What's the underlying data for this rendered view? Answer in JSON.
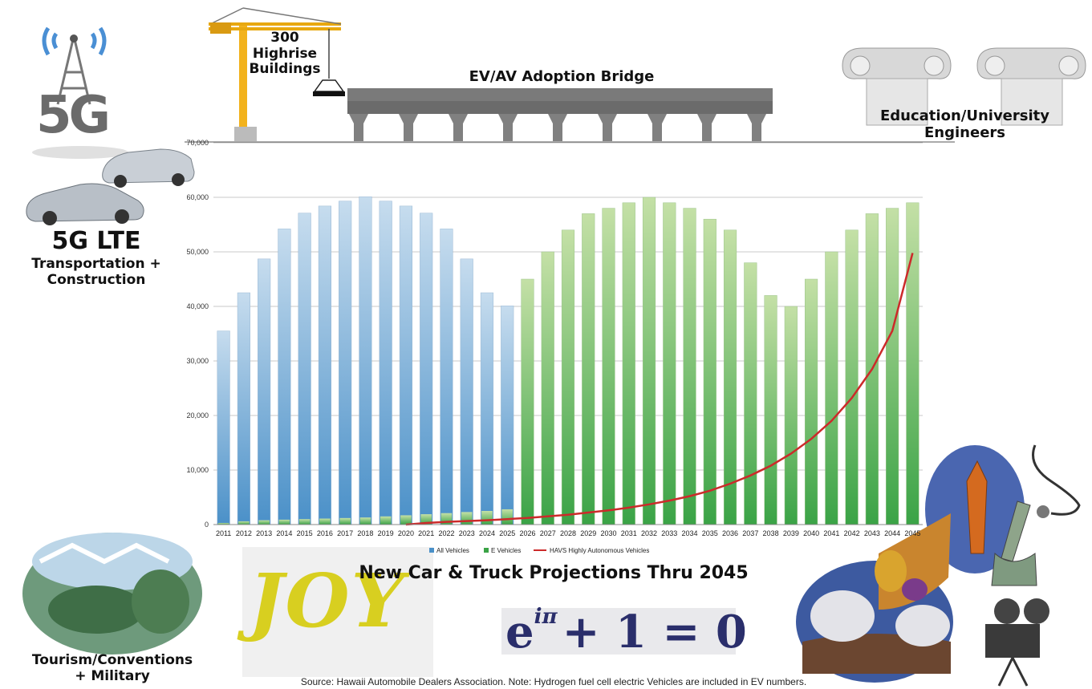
{
  "labels": {
    "highrise": "300\nHighrise\nBuildings",
    "bridge": "EV/AV Adoption Bridge",
    "education": "Education/University\nEngineers",
    "fiveg_title": "5G LTE",
    "fiveg_sub": "Transportation +\nConstruction",
    "tourism": "Tourism/Conventions\n+ Military",
    "chart_title": "New Car & Truck Projections Thru 2045",
    "euler_base": "e",
    "euler_exp": "iπ",
    "euler_rest": "+ 1 = 0",
    "fiveg_icon_text": "5G",
    "joy_text": "JOY",
    "source": "Source: Hawaii Automobile Dealers Association. Note: Hydrogen fuel cell electric Vehicles are included in EV numbers."
  },
  "colors": {
    "all_vehicles": "#4a90c8",
    "all_vehicles_light": "#c6dcee",
    "e_vehicles": "#3aa346",
    "e_vehicles_light": "#c4e0a6",
    "havs": "#cc2a2a",
    "bridge": "#808080"
  },
  "chart_data": {
    "type": "bar",
    "title": "New Car & Truck Projections Thru 2045",
    "ylim": [
      0,
      70000
    ],
    "yticks": [
      "0",
      "10,000",
      "20,000",
      "30,000",
      "40,000",
      "50,000",
      "60,000",
      "70,000"
    ],
    "ytick_values": [
      0,
      10000,
      20000,
      30000,
      40000,
      50000,
      60000,
      70000
    ],
    "grid": true,
    "legend_position": "bottom",
    "categories": [
      "2011",
      "2012",
      "2013",
      "2014",
      "2015",
      "2016",
      "2017",
      "2018",
      "2019",
      "2020",
      "2021",
      "2022",
      "2023",
      "2024",
      "2025",
      "2026",
      "2027",
      "2028",
      "2029",
      "2030",
      "2031",
      "2032",
      "2033",
      "2034",
      "2035",
      "2036",
      "2037",
      "2038",
      "2039",
      "2040",
      "2041",
      "2042",
      "2043",
      "2044",
      "2045"
    ],
    "series": [
      {
        "name": "All Vehicles",
        "type": "bar",
        "values": [
          35500,
          42500,
          48700,
          54200,
          57100,
          58400,
          59300,
          60100,
          59300,
          58400,
          57100,
          54200,
          48700,
          42500,
          40100,
          null,
          null,
          null,
          null,
          null,
          null,
          null,
          null,
          null,
          null,
          null,
          null,
          null,
          null,
          null,
          null,
          null,
          null,
          null,
          null
        ]
      },
      {
        "name": "E Vehicles",
        "type": "bar",
        "values": [
          300,
          600,
          800,
          900,
          1000,
          1100,
          1200,
          1300,
          1500,
          1700,
          1900,
          2100,
          2300,
          2500,
          2800,
          45000,
          50000,
          54000,
          57000,
          58000,
          59000,
          60000,
          59000,
          58000,
          56000,
          54000,
          48000,
          42000,
          40000,
          45000,
          50000,
          54000,
          57000,
          58000,
          59000
        ]
      },
      {
        "name": "HAVS Highly Autonomous Vehicles",
        "type": "line",
        "values": [
          null,
          null,
          null,
          null,
          null,
          null,
          null,
          null,
          null,
          0,
          300,
          500,
          650,
          800,
          1000,
          1200,
          1500,
          1800,
          2200,
          2600,
          3100,
          3700,
          4400,
          5200,
          6200,
          7500,
          9000,
          10800,
          13000,
          15700,
          19000,
          23200,
          28500,
          35500,
          49800
        ]
      }
    ]
  }
}
